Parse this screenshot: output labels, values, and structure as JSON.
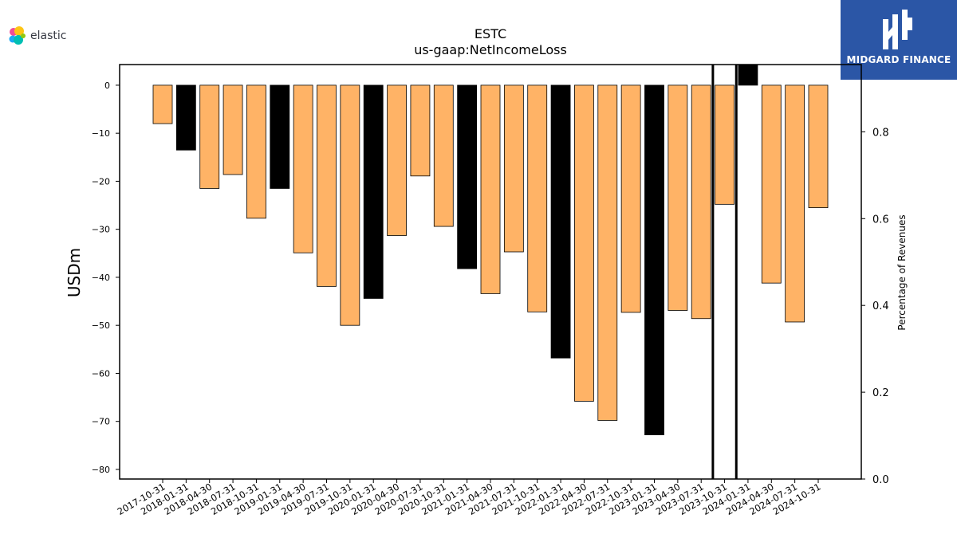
{
  "brand": {
    "logo_text": "elastic",
    "badge_text": "MIDGARD FINANCE"
  },
  "chart_data": {
    "type": "bar",
    "title": "ESTC",
    "subtitle": "us-gaap:NetIncomeLoss",
    "ylabel": "USDm",
    "ylabel_right": "Percentage of Revenues",
    "ylim": [
      -82,
      4.3
    ],
    "yticks": [
      0,
      -10,
      -20,
      -30,
      -40,
      -50,
      -60,
      -70,
      -80
    ],
    "ylim_right": [
      0.0,
      0.955
    ],
    "yticks_right": [
      0.0,
      0.2,
      0.4,
      0.6,
      0.8
    ],
    "categories": [
      "2017-10-31",
      "2018-01-31",
      "2018-04-30",
      "2018-07-31",
      "2018-10-31",
      "2019-01-31",
      "2019-04-30",
      "2019-07-31",
      "2019-10-31",
      "2020-01-31",
      "2020-04-30",
      "2020-07-31",
      "2020-10-31",
      "2021-01-31",
      "2021-04-30",
      "2021-07-31",
      "2021-10-31",
      "2022-01-31",
      "2022-04-30",
      "2022-07-31",
      "2022-10-31",
      "2023-01-31",
      "2023-04-30",
      "2023-07-31",
      "2023-10-31",
      "2024-01-31",
      "2024-04-30",
      "2024-07-31",
      "2024-10-31"
    ],
    "values": [
      -8.0,
      -13.5,
      -21.5,
      -18.6,
      -27.7,
      -21.5,
      -34.9,
      -41.9,
      -50.0,
      -44.4,
      -31.3,
      -18.9,
      -29.4,
      -38.2,
      -43.4,
      -34.7,
      -47.2,
      -56.8,
      -65.8,
      -69.8,
      -47.3,
      -72.8,
      -46.9,
      -48.6,
      -24.8,
      4.3,
      -41.2,
      -49.3,
      -25.5
    ],
    "colors": {
      "quarter": "#FFB366",
      "fiscal_year_end": "#000000",
      "edge": "#000000"
    },
    "bar_kind": [
      "quarter",
      "fiscal_year_end",
      "quarter",
      "quarter",
      "quarter",
      "fiscal_year_end",
      "quarter",
      "quarter",
      "quarter",
      "fiscal_year_end",
      "quarter",
      "quarter",
      "quarter",
      "fiscal_year_end",
      "quarter",
      "quarter",
      "quarter",
      "fiscal_year_end",
      "quarter",
      "quarter",
      "quarter",
      "fiscal_year_end",
      "quarter",
      "quarter",
      "quarter",
      "fiscal_year_end",
      "quarter",
      "quarter",
      "quarter"
    ],
    "vertical_markers": [
      "2023-10-31",
      "2024-01-31"
    ],
    "grid": false,
    "legend": "none"
  }
}
